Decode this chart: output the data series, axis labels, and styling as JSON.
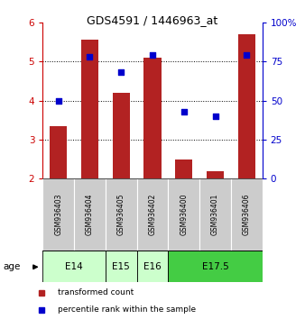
{
  "title": "GDS4591 / 1446963_at",
  "samples": [
    "GSM936403",
    "GSM936404",
    "GSM936405",
    "GSM936402",
    "GSM936400",
    "GSM936401",
    "GSM936406"
  ],
  "transformed_counts": [
    3.35,
    5.55,
    4.2,
    5.1,
    2.5,
    2.2,
    5.7
  ],
  "percentile_ranks": [
    50,
    78,
    68,
    79,
    43,
    40,
    79
  ],
  "bar_bottom": 2.0,
  "ylim_left": [
    2.0,
    6.0
  ],
  "ylim_right": [
    0,
    100
  ],
  "yticks_left": [
    2,
    3,
    4,
    5,
    6
  ],
  "yticks_right": [
    0,
    25,
    50,
    75,
    100
  ],
  "bar_color": "#b22222",
  "dot_color": "#0000cc",
  "age_groups": [
    {
      "label": "E14",
      "samples": [
        0,
        1
      ],
      "color": "#ccffcc"
    },
    {
      "label": "E15",
      "samples": [
        2
      ],
      "color": "#ccffcc"
    },
    {
      "label": "E16",
      "samples": [
        3
      ],
      "color": "#ccffcc"
    },
    {
      "label": "E17.5",
      "samples": [
        4,
        5,
        6
      ],
      "color": "#44cc44"
    }
  ],
  "tick_label_color_left": "#cc0000",
  "tick_label_color_right": "#0000cc",
  "legend_red_label": "transformed count",
  "legend_blue_label": "percentile rank within the sample",
  "age_label": "age"
}
